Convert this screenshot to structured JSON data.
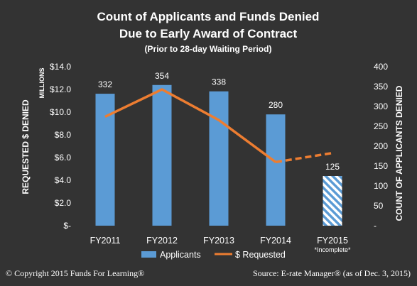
{
  "colors": {
    "background": "#333333",
    "bar": "#5b9bd5",
    "line": "#ed7d31",
    "text": "#ffffff"
  },
  "chart_data": {
    "type": "bar",
    "title_lines": [
      "Count of Applicants and Funds Denied",
      "Due to Early Award of Contract"
    ],
    "subtitle": "(Prior to 28-day Waiting Period)",
    "categories": [
      "FY2011",
      "FY2012",
      "FY2013",
      "FY2014",
      "FY2015"
    ],
    "category_notes": [
      "",
      "",
      "",
      "",
      "*Incomplete*"
    ],
    "y_left": {
      "label": "REQUESTED $ DENIED",
      "units": "MILLIONS",
      "range": [
        0,
        14
      ],
      "tick_labels": [
        "$-",
        "$2.0",
        "$4.0",
        "$6.0",
        "$8.0",
        "$10.0",
        "$12.0",
        "$14.0"
      ]
    },
    "y_right": {
      "label": "COUNT OF APPLICANTS DENIED",
      "range": [
        0,
        400
      ],
      "ticks": [
        0,
        50,
        100,
        150,
        200,
        250,
        300,
        350,
        400
      ],
      "tick_labels": [
        "-",
        "50",
        "100",
        "150",
        "200",
        "250",
        "300",
        "350",
        "400"
      ]
    },
    "series": [
      {
        "name": "Applicants",
        "kind": "bar",
        "axis": "right",
        "values": [
          332,
          354,
          338,
          280,
          125
        ],
        "labels": [
          "332",
          "354",
          "338",
          "280",
          "125"
        ],
        "hatched": [
          false,
          false,
          false,
          false,
          true
        ]
      },
      {
        "name": "$ Requested",
        "kind": "line",
        "axis": "left",
        "values": [
          9.6,
          12.0,
          9.3,
          5.6,
          6.4
        ],
        "dashed_last_segment": true
      }
    ],
    "legend_position": "bottom",
    "grid": false
  },
  "footer": {
    "copyright": "© Copyright 2015 Funds For Learning®",
    "source": "Source: E-rate Manager® (as of Dec. 3, 2015)"
  }
}
